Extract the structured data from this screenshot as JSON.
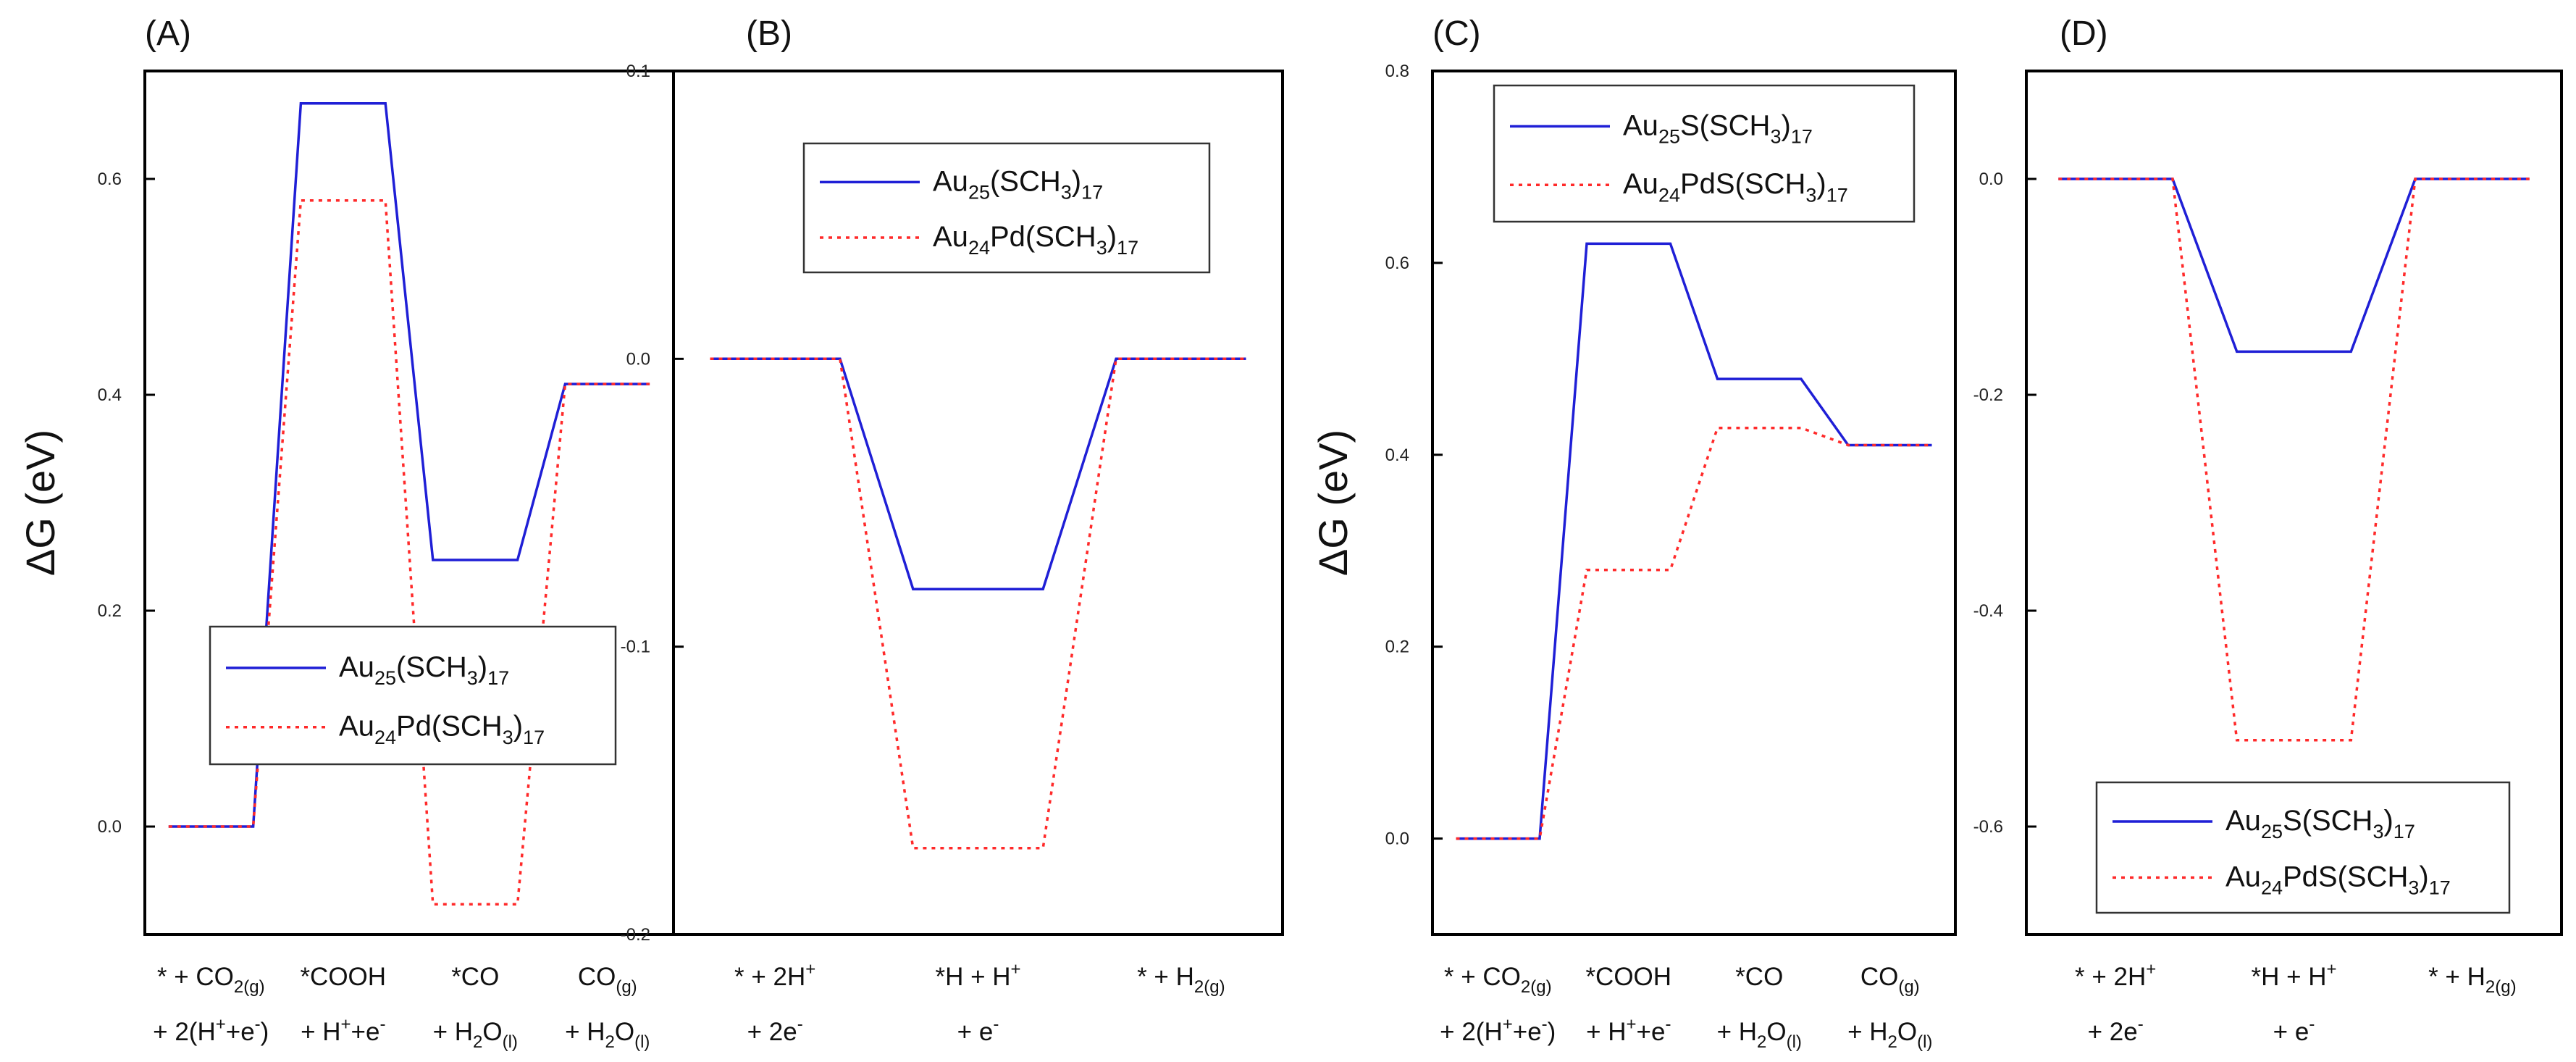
{
  "colors": {
    "series_blue": "#1f1fd6",
    "series_red": "#ff2a2a",
    "axis": "#000000"
  },
  "chart_data": [
    {
      "type": "line",
      "panel_label": "(A)",
      "ylabel": "ΔG (eV)",
      "ylim": [
        -0.1,
        0.7
      ],
      "yticks": [
        0.0,
        0.2,
        0.4,
        0.6
      ],
      "ytick_labels": [
        "0.0",
        "0.2",
        "0.4",
        "0.6"
      ],
      "xlim": [
        -0.5,
        3.5
      ],
      "categories": [
        [
          {
            "t": "* + CO"
          },
          {
            "t": "2(g)",
            "sub": true
          }
        ],
        [
          {
            "t": "*COOH"
          }
        ],
        [
          {
            "t": "*CO"
          }
        ],
        [
          {
            "t": "CO"
          },
          {
            "t": "(g)",
            "sub": true
          }
        ]
      ],
      "categories_line2": [
        [
          {
            "t": "+ 2(H"
          },
          {
            "t": "+",
            "sup": true
          },
          {
            "t": "+e"
          },
          {
            "t": "-",
            "sup": true
          },
          {
            "t": ")"
          }
        ],
        [
          {
            "t": "+ H"
          },
          {
            "t": "+",
            "sup": true
          },
          {
            "t": "+e"
          },
          {
            "t": "-",
            "sup": true
          }
        ],
        [
          {
            "t": "+ H"
          },
          {
            "t": "2",
            "sub": true
          },
          {
            "t": "O"
          },
          {
            "t": "(l)",
            "sub": true
          }
        ],
        [
          {
            "t": "+ H"
          },
          {
            "t": "2",
            "sub": true
          },
          {
            "t": "O"
          },
          {
            "t": "(l)",
            "sub": true
          }
        ]
      ],
      "series": [
        {
          "name": [
            {
              "t": "Au"
            },
            {
              "t": "25",
              "sub": true
            },
            {
              "t": "(SCH"
            },
            {
              "t": "3",
              "sub": true
            },
            {
              "t": ")"
            },
            {
              "t": "17",
              "sub": true
            }
          ],
          "color": "#1f1fd6",
          "dash": "solid",
          "values": [
            0.0,
            0.67,
            0.247,
            0.41
          ]
        },
        {
          "name": [
            {
              "t": "Au"
            },
            {
              "t": "24",
              "sub": true
            },
            {
              "t": "Pd(SCH"
            },
            {
              "t": "3",
              "sub": true
            },
            {
              "t": ")"
            },
            {
              "t": "17",
              "sub": true
            }
          ],
          "color": "#ff2a2a",
          "dash": "dotted",
          "values": [
            0.0,
            0.58,
            -0.072,
            0.41
          ]
        }
      ],
      "legend_position": "lower-right"
    },
    {
      "type": "line",
      "panel_label": "(B)",
      "ylabel": "",
      "ylim": [
        -0.2,
        0.1
      ],
      "yticks": [
        -0.2,
        -0.1,
        0.0,
        0.1
      ],
      "ytick_labels": [
        "-0.2",
        "-0.1",
        "0.0",
        "0.1"
      ],
      "xlim": [
        -0.5,
        2.5
      ],
      "categories": [
        [
          {
            "t": "* + 2H"
          },
          {
            "t": "+",
            "sup": true
          }
        ],
        [
          {
            "t": "*H + H"
          },
          {
            "t": "+",
            "sup": true
          }
        ],
        [
          {
            "t": "* + H"
          },
          {
            "t": "2(g)",
            "sub": true
          }
        ]
      ],
      "categories_line2": [
        [
          {
            "t": "+ 2e"
          },
          {
            "t": "-",
            "sup": true
          }
        ],
        [
          {
            "t": "+ e"
          },
          {
            "t": "-",
            "sup": true
          }
        ],
        []
      ],
      "series": [
        {
          "name": [
            {
              "t": "Au"
            },
            {
              "t": "25",
              "sub": true
            },
            {
              "t": "(SCH"
            },
            {
              "t": "3",
              "sub": true
            },
            {
              "t": ")"
            },
            {
              "t": "17",
              "sub": true
            }
          ],
          "color": "#1f1fd6",
          "dash": "solid",
          "values": [
            0.0,
            -0.08,
            0.0
          ]
        },
        {
          "name": [
            {
              "t": "Au"
            },
            {
              "t": "24",
              "sub": true
            },
            {
              "t": "Pd(SCH"
            },
            {
              "t": "3",
              "sub": true
            },
            {
              "t": ")"
            },
            {
              "t": "17",
              "sub": true
            }
          ],
          "color": "#ff2a2a",
          "dash": "dotted",
          "values": [
            0.0,
            -0.17,
            0.0
          ]
        }
      ],
      "legend_position": "upper-left"
    },
    {
      "type": "line",
      "panel_label": "(C)",
      "ylabel": "ΔG (eV)",
      "ylim": [
        -0.1,
        0.8
      ],
      "yticks": [
        0.0,
        0.2,
        0.4,
        0.6,
        0.8
      ],
      "ytick_labels": [
        "0.0",
        "0.2",
        "0.4",
        "0.6",
        "0.8"
      ],
      "xlim": [
        -0.5,
        3.5
      ],
      "categories": [
        [
          {
            "t": "* + CO"
          },
          {
            "t": "2(g)",
            "sub": true
          }
        ],
        [
          {
            "t": "*COOH"
          }
        ],
        [
          {
            "t": "*CO"
          }
        ],
        [
          {
            "t": "CO"
          },
          {
            "t": "(g)",
            "sub": true
          }
        ]
      ],
      "categories_line2": [
        [
          {
            "t": "+ 2(H"
          },
          {
            "t": "+",
            "sup": true
          },
          {
            "t": "+e"
          },
          {
            "t": "-",
            "sup": true
          },
          {
            "t": ")"
          }
        ],
        [
          {
            "t": "+ H"
          },
          {
            "t": "+",
            "sup": true
          },
          {
            "t": "+e"
          },
          {
            "t": "-",
            "sup": true
          }
        ],
        [
          {
            "t": "+ H"
          },
          {
            "t": "2",
            "sub": true
          },
          {
            "t": "O"
          },
          {
            "t": "(l)",
            "sub": true
          }
        ],
        [
          {
            "t": "+ H"
          },
          {
            "t": "2",
            "sub": true
          },
          {
            "t": "O"
          },
          {
            "t": "(l)",
            "sub": true
          }
        ]
      ],
      "series": [
        {
          "name": [
            {
              "t": "Au"
            },
            {
              "t": "25",
              "sub": true
            },
            {
              "t": "S(SCH"
            },
            {
              "t": "3",
              "sub": true
            },
            {
              "t": ")"
            },
            {
              "t": "17",
              "sub": true
            }
          ],
          "color": "#1f1fd6",
          "dash": "solid",
          "values": [
            0.0,
            0.62,
            0.479,
            0.41
          ]
        },
        {
          "name": [
            {
              "t": "Au"
            },
            {
              "t": "24",
              "sub": true
            },
            {
              "t": "PdS(SCH"
            },
            {
              "t": "3",
              "sub": true
            },
            {
              "t": ")"
            },
            {
              "t": "17",
              "sub": true
            }
          ],
          "color": "#ff2a2a",
          "dash": "dotted",
          "values": [
            0.0,
            0.28,
            0.428,
            0.41
          ]
        }
      ],
      "legend_position": "top"
    },
    {
      "type": "line",
      "panel_label": "(D)",
      "ylabel": "",
      "ylim": [
        -0.7,
        0.1
      ],
      "yticks": [
        -0.6,
        -0.4,
        -0.2,
        0.0
      ],
      "ytick_labels": [
        "-0.6",
        "-0.4",
        "-0.2",
        "0.0"
      ],
      "xlim": [
        -0.5,
        2.5
      ],
      "categories": [
        [
          {
            "t": "* + 2H"
          },
          {
            "t": "+",
            "sup": true
          }
        ],
        [
          {
            "t": "*H + H"
          },
          {
            "t": "+",
            "sup": true
          }
        ],
        [
          {
            "t": "* + H"
          },
          {
            "t": "2(g)",
            "sub": true
          }
        ]
      ],
      "categories_line2": [
        [
          {
            "t": "+ 2e"
          },
          {
            "t": "-",
            "sup": true
          }
        ],
        [
          {
            "t": "+ e"
          },
          {
            "t": "-",
            "sup": true
          }
        ],
        []
      ],
      "series": [
        {
          "name": [
            {
              "t": "Au"
            },
            {
              "t": "25",
              "sub": true
            },
            {
              "t": "S(SCH"
            },
            {
              "t": "3",
              "sub": true
            },
            {
              "t": ")"
            },
            {
              "t": "17",
              "sub": true
            }
          ],
          "color": "#1f1fd6",
          "dash": "solid",
          "values": [
            0.0,
            -0.16,
            0.0
          ]
        },
        {
          "name": [
            {
              "t": "Au"
            },
            {
              "t": "24",
              "sub": true
            },
            {
              "t": "PdS(SCH"
            },
            {
              "t": "3",
              "sub": true
            },
            {
              "t": ")"
            },
            {
              "t": "17",
              "sub": true
            }
          ],
          "color": "#ff2a2a",
          "dash": "dotted",
          "values": [
            0.0,
            -0.52,
            0.0
          ]
        }
      ],
      "legend_position": "lower-right"
    }
  ]
}
